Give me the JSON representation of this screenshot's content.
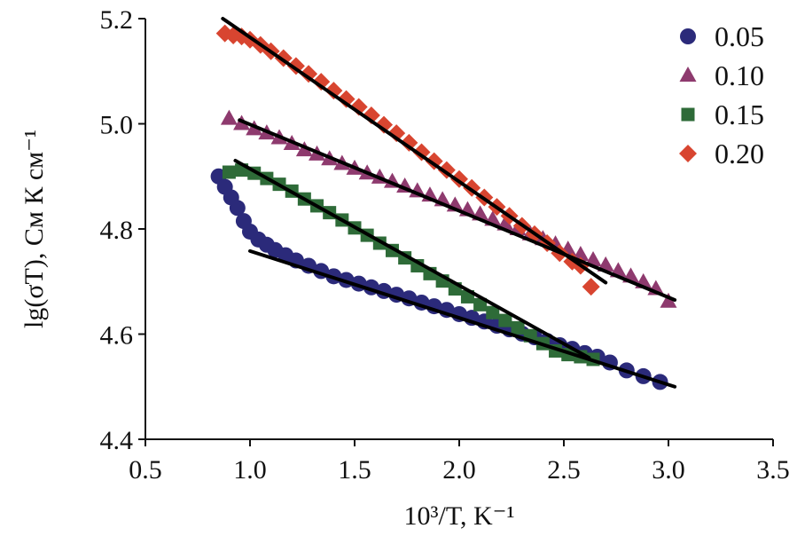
{
  "chart_data": {
    "type": "scatter",
    "xlabel": "10³/T, K⁻¹",
    "ylabel": "lg(σT), См К см⁻¹",
    "xlim": [
      0.5,
      3.5
    ],
    "ylim": [
      4.4,
      5.2
    ],
    "xticks": [
      "0.5",
      "1.0",
      "1.5",
      "2.0",
      "2.5",
      "3.0",
      "3.5"
    ],
    "yticks": [
      "4.4",
      "4.6",
      "4.8",
      "5.0",
      "5.2"
    ],
    "legend_position": "top-right",
    "series": [
      {
        "name": "0.05",
        "marker": "circle",
        "color": "#2b2a7a",
        "x": [
          0.85,
          0.88,
          0.91,
          0.94,
          0.97,
          1.0,
          1.04,
          1.08,
          1.12,
          1.17,
          1.22,
          1.28,
          1.34,
          1.4,
          1.46,
          1.52,
          1.58,
          1.64,
          1.7,
          1.76,
          1.82,
          1.88,
          1.94,
          2.0,
          2.06,
          2.12,
          2.18,
          2.24,
          2.3,
          2.36,
          2.42,
          2.48,
          2.54,
          2.6,
          2.66,
          2.72,
          2.8,
          2.88,
          2.96
        ],
        "y": [
          4.9,
          4.88,
          4.86,
          4.84,
          4.815,
          4.795,
          4.78,
          4.77,
          4.76,
          4.75,
          4.74,
          4.73,
          4.72,
          4.71,
          4.703,
          4.696,
          4.689,
          4.682,
          4.675,
          4.668,
          4.66,
          4.653,
          4.646,
          4.638,
          4.631,
          4.624,
          4.616,
          4.609,
          4.601,
          4.594,
          4.587,
          4.579,
          4.572,
          4.564,
          4.557,
          4.546,
          4.531,
          4.52,
          4.509
        ]
      },
      {
        "name": "0.10",
        "marker": "triangle",
        "color": "#8e3a6e",
        "x": [
          0.9,
          0.96,
          1.02,
          1.08,
          1.14,
          1.2,
          1.26,
          1.32,
          1.38,
          1.44,
          1.5,
          1.56,
          1.62,
          1.68,
          1.74,
          1.8,
          1.86,
          1.92,
          1.98,
          2.04,
          2.1,
          2.16,
          2.22,
          2.28,
          2.34,
          2.4,
          2.46,
          2.52,
          2.58,
          2.64,
          2.7,
          2.76,
          2.82,
          2.88,
          2.94,
          3.0
        ],
        "y": [
          5.01,
          5.0,
          4.99,
          4.982,
          4.973,
          4.962,
          4.95,
          4.942,
          4.933,
          4.924,
          4.915,
          4.906,
          4.898,
          4.89,
          4.881,
          4.872,
          4.864,
          4.855,
          4.845,
          4.836,
          4.828,
          4.818,
          4.809,
          4.8,
          4.79,
          4.781,
          4.771,
          4.761,
          4.751,
          4.741,
          4.731,
          4.72,
          4.71,
          4.699,
          4.686,
          4.662
        ]
      },
      {
        "name": "0.15",
        "marker": "square",
        "color": "#2e6b38",
        "x": [
          0.9,
          0.96,
          1.02,
          1.08,
          1.14,
          1.2,
          1.26,
          1.32,
          1.38,
          1.44,
          1.5,
          1.56,
          1.62,
          1.68,
          1.74,
          1.8,
          1.86,
          1.92,
          1.98,
          2.04,
          2.1,
          2.16,
          2.22,
          2.28,
          2.34,
          2.4,
          2.46,
          2.52,
          2.58,
          2.64
        ],
        "y": [
          4.908,
          4.912,
          4.906,
          4.896,
          4.885,
          4.872,
          4.857,
          4.844,
          4.831,
          4.817,
          4.802,
          4.788,
          4.773,
          4.759,
          4.745,
          4.73,
          4.715,
          4.701,
          4.686,
          4.671,
          4.656,
          4.641,
          4.626,
          4.612,
          4.597,
          4.582,
          4.568,
          4.561,
          4.557,
          4.552
        ]
      },
      {
        "name": "0.20",
        "marker": "diamond",
        "color": "#d84530",
        "x": [
          0.88,
          0.92,
          0.96,
          1.0,
          1.05,
          1.1,
          1.16,
          1.22,
          1.28,
          1.34,
          1.4,
          1.46,
          1.52,
          1.58,
          1.64,
          1.7,
          1.76,
          1.82,
          1.88,
          1.94,
          2.0,
          2.06,
          2.12,
          2.18,
          2.24,
          2.3,
          2.36,
          2.42,
          2.48,
          2.54,
          2.58,
          2.63
        ],
        "y": [
          5.172,
          5.168,
          5.166,
          5.16,
          5.15,
          5.138,
          5.125,
          5.11,
          5.095,
          5.08,
          5.063,
          5.047,
          5.032,
          5.016,
          4.998,
          4.982,
          4.964,
          4.946,
          4.929,
          4.912,
          4.895,
          4.878,
          4.86,
          4.842,
          4.825,
          4.806,
          4.79,
          4.773,
          4.754,
          4.738,
          4.73,
          4.69
        ]
      }
    ],
    "fit_lines": [
      {
        "name": "fit-0.05",
        "x": [
          1.0,
          3.03
        ],
        "y": [
          4.758,
          4.5
        ]
      },
      {
        "name": "fit-0.10",
        "x": [
          0.95,
          3.03
        ],
        "y": [
          5.007,
          4.665
        ]
      },
      {
        "name": "fit-0.15",
        "x": [
          0.93,
          2.62
        ],
        "y": [
          4.93,
          4.555
        ]
      },
      {
        "name": "fit-0.20",
        "x": [
          0.87,
          2.7
        ],
        "y": [
          5.2,
          4.698
        ]
      }
    ]
  }
}
